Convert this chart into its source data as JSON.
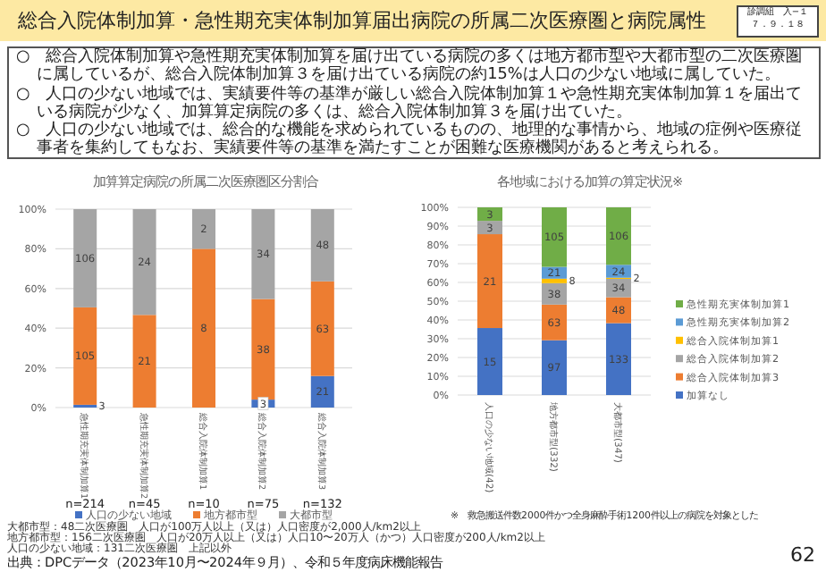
{
  "chart_data": [
    {
      "type": "other",
      "title": "総合入院体制加算・急性期充実体制加算届出病院の所属二次医療圏と病院属性",
      "annotations": [
        "診調組　入−１",
        "７．９．１８",
        "○　総合入院体制加算や急性期充実体制加算を届け出ている病院の多くは地方都市型や大都市型の二次医療圏に属しているが、総合入院体制加算３を届け出ている病院の約15%は人口の少ない地域に属していた。",
        "○　人口の少ない地域では、実績要件等の基準が厳しい総合入院体制加算１や急性期充実体制加算１を届出ている病院が少なく、加算算定病院の多くは、総合入院体制加算３を届け出ていた。",
        "○　人口の少ない地域では、総合的な機能を求められているものの、地理的な事情から、地域の症例や医療従事者を集約してもなお、実績要件等の基準を満たすことが困難な医療機関があると考えられる。",
        "出典：DPCデータ（2023年10月〜2024年９月）、令和５年度病床機能報告",
        "62"
      ]
    },
    {
      "type": "bar",
      "stacked": true,
      "title": "加算算定病院の所属二次医療圏区分割合",
      "categories": [
        "急性期充実体制加算1",
        "急性期充実体制加算2",
        "総合入院体制加算1",
        "総合入院体制加算2",
        "総合入院体制加算3"
      ],
      "series": [
        {
          "name": "人口の少ない地域",
          "color": "#4472c4",
          "values": [
            1.4,
            null,
            null,
            4.0,
            15.9
          ]
        },
        {
          "name": "地方都市型",
          "color": "#ed7d31",
          "values": [
            49.1,
            46.7,
            80.0,
            50.7,
            47.7
          ]
        },
        {
          "name": "大都市型",
          "color": "#a5a5a5",
          "values": [
            49.5,
            53.3,
            20.0,
            45.3,
            36.4
          ]
        }
      ],
      "ylim": [
        0,
        100
      ],
      "yticks": [
        {
          "value": 0,
          "label": "0%"
        },
        {
          "value": 20,
          "label": "20%"
        },
        {
          "value": 40,
          "label": "40%"
        },
        {
          "value": 60,
          "label": "60%"
        },
        {
          "value": 80,
          "label": "80%"
        },
        {
          "value": 100,
          "label": "100%"
        }
      ],
      "grid": "y",
      "legend": "bottom",
      "annotations": [
        "n=214",
        "n=45",
        "n=10",
        "n=75",
        "n=132",
        "大都市型：48二次医療圏　人口が100万人以上（又は）人口密度が2,000人/km2以上",
        "地方都市型：156二次医療圏　人口が20万人以上（又は）人口10〜20万人（かつ）人口密度が200人/km2以上",
        "人口の少ない地域：131二次医療圏　上記以外",
        "3",
        "105",
        "106",
        "21",
        "24",
        "8",
        "2",
        "3",
        "38",
        "34",
        "21",
        "63",
        "48"
      ]
    },
    {
      "type": "bar",
      "stacked": true,
      "title": "各地域における加算の算定状況※",
      "categories": [
        "人口の少ない地域(42)",
        "地方都市型(332)",
        "大都市型(347)"
      ],
      "series": [
        {
          "name": "加算なし",
          "color": "#4472c4",
          "values": [
            35.7,
            29.2,
            38.3
          ]
        },
        {
          "name": "総合入院体制加算3",
          "color": "#ed7d31",
          "values": [
            50.0,
            19.0,
            13.8
          ]
        },
        {
          "name": "総合入院体制加算2",
          "color": "#a5a5a5",
          "values": [
            7.1,
            11.4,
            9.8
          ]
        },
        {
          "name": "総合入院体制加算1",
          "color": "#ffc000",
          "values": [
            null,
            2.4,
            0.6
          ]
        },
        {
          "name": "急性期充実体制加算2",
          "color": "#5b9bd5",
          "values": [
            null,
            6.3,
            6.9
          ]
        },
        {
          "name": "急性期充実体制加算1",
          "color": "#70ad47",
          "values": [
            7.2,
            31.7,
            30.6
          ]
        }
      ],
      "ylim": [
        0,
        100
      ],
      "yticks": [
        {
          "value": 0,
          "label": "0%"
        },
        {
          "value": 10,
          "label": "10%"
        },
        {
          "value": 20,
          "label": "20%"
        },
        {
          "value": 30,
          "label": "30%"
        },
        {
          "value": 40,
          "label": "40%"
        },
        {
          "value": 50,
          "label": "50%"
        },
        {
          "value": 60,
          "label": "60%"
        },
        {
          "value": 70,
          "label": "70%"
        },
        {
          "value": 80,
          "label": "80%"
        },
        {
          "value": 90,
          "label": "90%"
        },
        {
          "value": 100,
          "label": "100%"
        }
      ],
      "grid": "y",
      "legend": "right",
      "annotations": [
        "※　救急搬送件数2000件かつ全身麻酔手術1200件以上の病院を対象とした",
        "15",
        "21",
        "3",
        "3",
        "97",
        "63",
        "38",
        "8",
        "21",
        "105",
        "133",
        "48",
        "34",
        "2",
        "24",
        "106"
      ]
    }
  ]
}
